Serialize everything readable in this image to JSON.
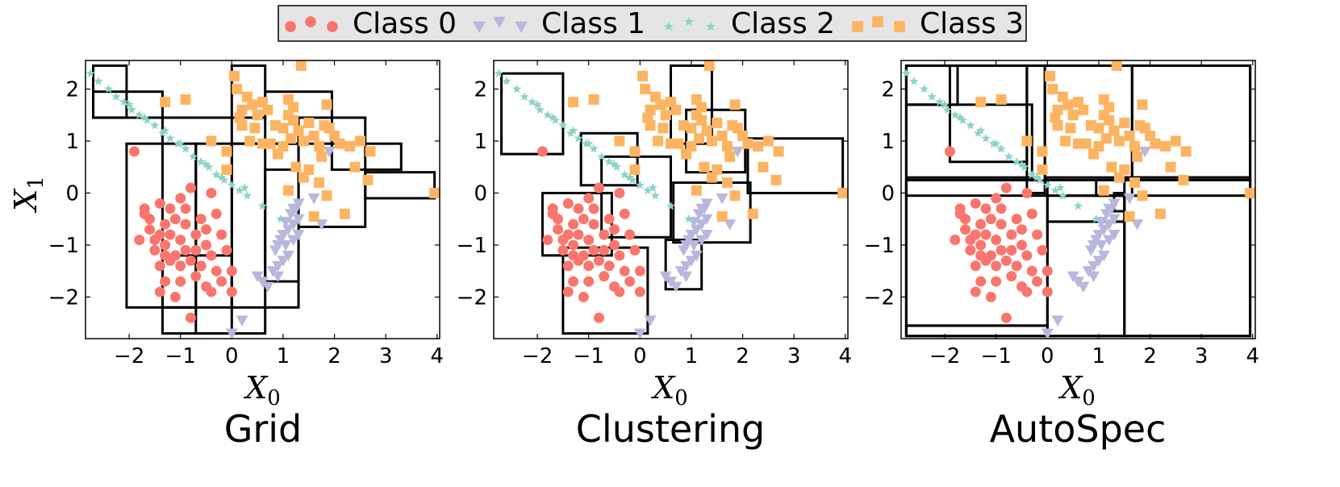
{
  "colors": {
    "class0": "#f8766d",
    "class1": "#b9b7dc",
    "class2": "#8dd3c7",
    "class3": "#fdb462",
    "legend_bg": "#e5e5e5"
  },
  "legend": {
    "entries": [
      {
        "label": "Class 0",
        "marker": "circle"
      },
      {
        "label": "Class 1",
        "marker": "triangle-down"
      },
      {
        "label": "Class 2",
        "marker": "star"
      },
      {
        "label": "Class 3",
        "marker": "square"
      }
    ]
  },
  "chart_data": [
    {
      "type": "scatter",
      "title": "Grid",
      "xlabel": "X",
      "xlabel_sub": "0",
      "ylabel": "X",
      "ylabel_sub": "1",
      "xlim": [
        -2.85,
        4.05
      ],
      "ylim": [
        -2.8,
        2.55
      ],
      "xticks": [
        -2,
        -1,
        0,
        1,
        2,
        3,
        4
      ],
      "yticks": [
        -2,
        -1,
        0,
        1,
        2
      ],
      "boxes": [
        [
          -2.7,
          1.45,
          -2.05,
          2.45
        ],
        [
          -2.7,
          1.45,
          -1.35,
          1.95
        ],
        [
          -2.05,
          -2.2,
          -0.7,
          0.95
        ],
        [
          -1.35,
          -2.2,
          0.0,
          1.45
        ],
        [
          -1.35,
          -2.7,
          0.0,
          -1.2
        ],
        [
          -0.7,
          -2.7,
          0.65,
          0.95
        ],
        [
          0.0,
          -2.2,
          1.3,
          0.95
        ],
        [
          0.0,
          1.45,
          0.65,
          2.45
        ],
        [
          0.65,
          0.95,
          1.95,
          1.95
        ],
        [
          0.65,
          -1.7,
          1.3,
          0.45
        ],
        [
          1.3,
          -0.65,
          2.6,
          1.45
        ],
        [
          1.95,
          0.45,
          3.3,
          0.95
        ],
        [
          2.6,
          -0.1,
          3.95,
          0.4
        ]
      ]
    },
    {
      "type": "scatter",
      "title": "Clustering",
      "xlabel": "X",
      "xlabel_sub": "0",
      "xlim": [
        -2.85,
        4.05
      ],
      "ylim": [
        -2.8,
        2.55
      ],
      "xticks": [
        -2,
        -1,
        0,
        1,
        2,
        3,
        4
      ],
      "yticks": [
        -2,
        -1,
        0,
        1,
        2
      ],
      "boxes": [
        [
          -2.7,
          0.75,
          -1.5,
          2.3
        ],
        [
          -1.15,
          0.15,
          -0.05,
          1.15
        ],
        [
          -0.75,
          -0.85,
          0.6,
          0.7
        ],
        [
          -1.9,
          -1.2,
          -0.55,
          0.0
        ],
        [
          -1.5,
          -2.7,
          0.15,
          -1.05
        ],
        [
          0.6,
          0.95,
          1.4,
          2.45
        ],
        [
          0.9,
          0.4,
          2.05,
          1.6
        ],
        [
          0.65,
          -0.95,
          2.15,
          0.2
        ],
        [
          0.5,
          -1.85,
          1.2,
          -0.9
        ],
        [
          2.1,
          0.0,
          3.95,
          1.05
        ]
      ]
    },
    {
      "type": "scatter",
      "title": "AutoSpec",
      "xlabel": "X",
      "xlabel_sub": "0",
      "xlim": [
        -2.85,
        4.05
      ],
      "ylim": [
        -2.8,
        2.55
      ],
      "xticks": [
        -2,
        -1,
        0,
        1,
        2,
        3,
        4
      ],
      "yticks": [
        -2,
        -1,
        0,
        1,
        2
      ],
      "boxes": [
        [
          -2.75,
          -2.75,
          3.95,
          2.45
        ],
        [
          -2.75,
          -2.55,
          0.0,
          0.25
        ],
        [
          -2.75,
          0.3,
          -0.3,
          1.7
        ],
        [
          -2.75,
          1.7,
          -1.75,
          2.45
        ],
        [
          -1.9,
          0.6,
          -0.4,
          2.45
        ],
        [
          -0.4,
          0.0,
          -0.05,
          2.45
        ],
        [
          -0.05,
          0.3,
          1.65,
          2.45
        ],
        [
          1.65,
          0.3,
          3.95,
          2.45
        ],
        [
          -2.75,
          -0.05,
          3.95,
          0.25
        ],
        [
          0.0,
          -0.55,
          1.5,
          -0.05
        ],
        [
          0.95,
          -0.05,
          1.65,
          0.25
        ],
        [
          1.5,
          -2.75,
          3.95,
          0.3
        ],
        [
          0.0,
          -2.75,
          1.5,
          -0.55
        ],
        [
          -2.75,
          -2.75,
          0.0,
          -2.55
        ],
        [
          1.3,
          -0.35,
          1.5,
          0.0
        ]
      ]
    }
  ],
  "points": {
    "class0": [
      [
        -1.9,
        0.8
      ],
      [
        -1.7,
        -0.3
      ],
      [
        -1.4,
        -0.2
      ],
      [
        -1.2,
        -0.3
      ],
      [
        -1.0,
        -0.1
      ],
      [
        -0.8,
        0.1
      ],
      [
        -0.4,
        0.0
      ],
      [
        -1.6,
        -0.5
      ],
      [
        -1.3,
        -0.6
      ],
      [
        -1.1,
        -0.5
      ],
      [
        -0.9,
        -0.6
      ],
      [
        -0.6,
        -0.5
      ],
      [
        -0.3,
        -0.4
      ],
      [
        -1.8,
        -0.9
      ],
      [
        -1.6,
        -0.7
      ],
      [
        -1.4,
        -0.8
      ],
      [
        -1.2,
        -0.8
      ],
      [
        -1.0,
        -0.9
      ],
      [
        -0.7,
        -0.8
      ],
      [
        -0.5,
        -0.7
      ],
      [
        -0.2,
        -0.8
      ],
      [
        -1.5,
        -1.1
      ],
      [
        -1.3,
        -1.0
      ],
      [
        -1.1,
        -1.2
      ],
      [
        -0.9,
        -1.1
      ],
      [
        -0.7,
        -1.1
      ],
      [
        -0.4,
        -1.2
      ],
      [
        -0.1,
        -1.1
      ],
      [
        -1.4,
        -1.4
      ],
      [
        -1.2,
        -1.3
      ],
      [
        -1.0,
        -1.4
      ],
      [
        -0.8,
        -1.3
      ],
      [
        -0.6,
        -1.4
      ],
      [
        -0.3,
        -1.5
      ],
      [
        0.0,
        -1.5
      ],
      [
        -1.3,
        -1.7
      ],
      [
        -1.0,
        -1.7
      ],
      [
        -0.7,
        -1.6
      ],
      [
        -0.5,
        -1.8
      ],
      [
        -0.2,
        -1.7
      ],
      [
        -1.4,
        -1.9
      ],
      [
        -1.1,
        -2.0
      ],
      [
        -0.4,
        -1.9
      ],
      [
        0.0,
        -1.9
      ],
      [
        -0.8,
        -2.4
      ],
      [
        -1.3,
        -1.2
      ],
      [
        -0.5,
        -1.0
      ],
      [
        -1.7,
        -0.4
      ],
      [
        -0.9,
        -0.3
      ],
      [
        -1.5,
        -0.9
      ]
    ],
    "class1": [
      [
        0.0,
        -2.7
      ],
      [
        0.2,
        -2.45
      ],
      [
        0.5,
        -1.6
      ],
      [
        0.6,
        -1.7
      ],
      [
        0.7,
        -1.8
      ],
      [
        0.8,
        -1.5
      ],
      [
        0.9,
        -1.6
      ],
      [
        1.0,
        -1.3
      ],
      [
        0.85,
        -1.1
      ],
      [
        0.95,
        -0.9
      ],
      [
        1.05,
        -1.0
      ],
      [
        1.1,
        -0.7
      ],
      [
        1.2,
        -0.6
      ],
      [
        1.15,
        -0.4
      ],
      [
        1.25,
        -0.3
      ],
      [
        1.3,
        -0.5
      ],
      [
        1.3,
        -0.8
      ],
      [
        1.2,
        -0.9
      ],
      [
        1.1,
        -1.2
      ],
      [
        0.9,
        -1.4
      ],
      [
        1.0,
        -0.8
      ],
      [
        1.2,
        -0.3
      ],
      [
        1.3,
        -0.2
      ],
      [
        1.75,
        -0.6
      ],
      [
        1.9,
        0.8
      ],
      [
        1.6,
        -0.1
      ],
      [
        0.9,
        -1.0
      ],
      [
        1.05,
        -0.55
      ]
    ],
    "class2": [
      [
        -2.75,
        2.3
      ],
      [
        -2.6,
        2.15
      ],
      [
        -2.4,
        2.0
      ],
      [
        -2.25,
        1.85
      ],
      [
        -2.1,
        1.75
      ],
      [
        -1.95,
        1.6
      ],
      [
        -1.8,
        1.5
      ],
      [
        -1.65,
        1.4
      ],
      [
        -1.5,
        1.3
      ],
      [
        -1.35,
        1.15
      ],
      [
        -1.2,
        1.05
      ],
      [
        -1.05,
        0.95
      ],
      [
        -0.9,
        0.85
      ],
      [
        -0.75,
        0.7
      ],
      [
        -0.6,
        0.6
      ],
      [
        -0.45,
        0.5
      ],
      [
        -0.3,
        0.35
      ],
      [
        -0.15,
        0.25
      ],
      [
        0.0,
        0.15
      ],
      [
        0.15,
        0.05
      ],
      [
        0.3,
        -0.05
      ],
      [
        0.6,
        -0.25
      ],
      [
        0.95,
        -0.5
      ],
      [
        -1.3,
        1.2
      ],
      [
        -1.7,
        1.45
      ],
      [
        -2.0,
        1.7
      ],
      [
        -0.5,
        0.55
      ],
      [
        -0.2,
        0.3
      ],
      [
        0.25,
        0.1
      ],
      [
        -1.0,
        0.95
      ]
    ],
    "class3": [
      [
        -1.3,
        1.75
      ],
      [
        -0.9,
        1.8
      ],
      [
        -0.4,
        1.0
      ],
      [
        -0.1,
        0.8
      ],
      [
        -0.1,
        0.45
      ],
      [
        0.05,
        2.25
      ],
      [
        0.1,
        2.0
      ],
      [
        0.2,
        1.6
      ],
      [
        0.3,
        1.85
      ],
      [
        0.4,
        1.7
      ],
      [
        0.5,
        1.5
      ],
      [
        0.6,
        1.75
      ],
      [
        0.7,
        1.6
      ],
      [
        0.85,
        1.3
      ],
      [
        1.0,
        1.25
      ],
      [
        1.1,
        1.5
      ],
      [
        1.2,
        1.4
      ],
      [
        1.3,
        1.2
      ],
      [
        1.4,
        1.0
      ],
      [
        1.5,
        1.35
      ],
      [
        1.6,
        1.1
      ],
      [
        1.7,
        0.9
      ],
      [
        1.8,
        1.3
      ],
      [
        1.9,
        1.25
      ],
      [
        2.0,
        1.1
      ],
      [
        2.1,
        0.95
      ],
      [
        2.3,
        0.9
      ],
      [
        2.5,
        1.0
      ],
      [
        2.7,
        0.8
      ],
      [
        2.4,
        0.5
      ],
      [
        2.65,
        0.25
      ],
      [
        1.35,
        2.45
      ],
      [
        0.6,
        0.95
      ],
      [
        0.9,
        0.75
      ],
      [
        1.1,
        1.8
      ],
      [
        1.15,
        1.05
      ],
      [
        1.5,
        0.45
      ],
      [
        1.75,
        0.7
      ],
      [
        0.75,
        0.95
      ],
      [
        1.0,
        0.9
      ],
      [
        1.25,
        0.5
      ],
      [
        1.4,
        0.3
      ],
      [
        1.7,
        0.2
      ],
      [
        1.85,
        -0.05
      ],
      [
        1.1,
        0.05
      ],
      [
        1.6,
        -0.45
      ],
      [
        2.2,
        -0.4
      ],
      [
        0.2,
        1.3
      ],
      [
        0.45,
        1.25
      ],
      [
        0.35,
        1.0
      ],
      [
        3.95,
        0.0
      ],
      [
        1.85,
        1.7
      ],
      [
        0.15,
        1.45
      ],
      [
        1.2,
        1.65
      ]
    ]
  }
}
